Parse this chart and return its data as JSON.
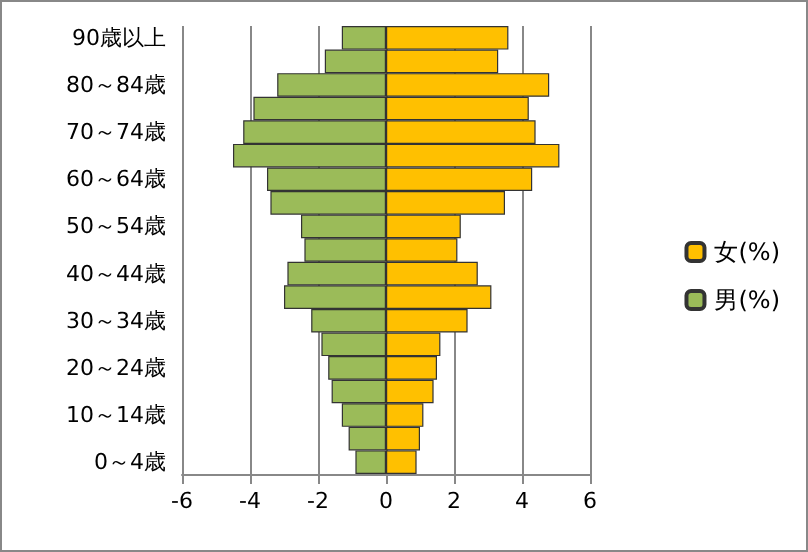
{
  "chart_data": {
    "type": "bar",
    "orientation": "horizontal",
    "categories": [
      "90歳以上",
      null,
      "80～84歳",
      null,
      "70～74歳",
      null,
      "60～64歳",
      null,
      "50～54歳",
      null,
      "40～44歳",
      null,
      "30～34歳",
      null,
      "20～24歳",
      null,
      "10～14歳",
      null,
      "0～4歳"
    ],
    "series": [
      {
        "name": "女(%)",
        "color": "#ffc000",
        "values": [
          3.6,
          3.3,
          4.8,
          4.2,
          4.4,
          5.1,
          4.3,
          3.5,
          2.2,
          2.1,
          2.7,
          3.1,
          2.4,
          1.6,
          1.5,
          1.4,
          1.1,
          1.0,
          0.9
        ]
      },
      {
        "name": "男(%)",
        "color": "#9bbb59",
        "values": [
          -1.3,
          -1.8,
          -3.2,
          -3.9,
          -4.2,
          -4.5,
          -3.5,
          -3.4,
          -2.5,
          -2.4,
          -2.9,
          -3.0,
          -2.2,
          -1.9,
          -1.7,
          -1.6,
          -1.3,
          -1.1,
          -0.9
        ]
      }
    ],
    "stacked": true,
    "xlim": [
      -6,
      6
    ],
    "xticks": [
      -6,
      -4,
      -2,
      0,
      2,
      4,
      6
    ],
    "grid": "x",
    "legend": "right"
  }
}
